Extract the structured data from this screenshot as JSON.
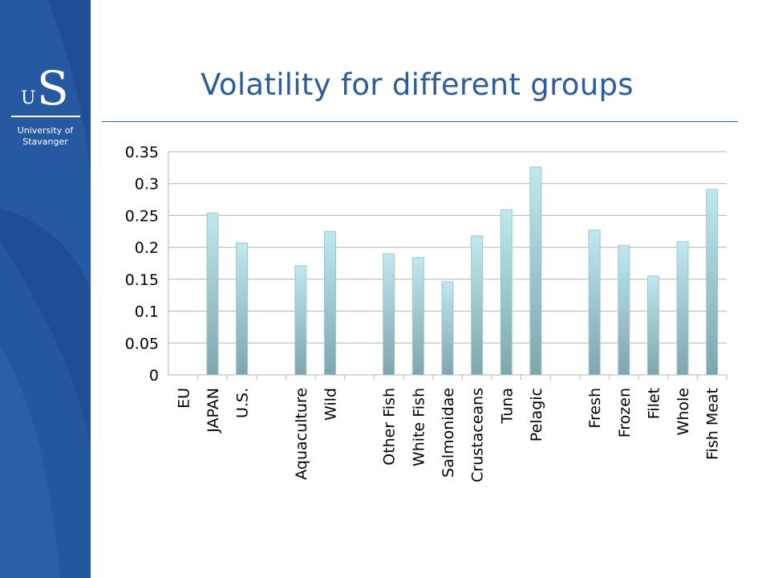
{
  "slide": {
    "title": "Volatility for different groups",
    "logo": {
      "mark_u": "U",
      "mark_s": "S",
      "line1": "University of",
      "line2": "Stavanger"
    }
  },
  "colors": {
    "sidebar": "#1f4e96",
    "title": "#2a5d99",
    "bar_top": "#bfe8ef",
    "bar_bottom": "#7fa5ad"
  },
  "chart_data": {
    "type": "bar",
    "title": "",
    "xlabel": "",
    "ylabel": "",
    "ylim": [
      0,
      0.35
    ],
    "yticks": [
      "0",
      "0.05",
      "0.1",
      "0.15",
      "0.2",
      "0.25",
      "0.3",
      "0.35"
    ],
    "grid": true,
    "categories": [
      "EU",
      "JAPAN",
      "U.S.",
      "",
      "Aquaculture",
      "Wild",
      "",
      "Other Fish",
      "White Fish",
      "Salmonidae",
      "Crustaceans",
      "Tuna",
      "Pelagic",
      "",
      "Fresh",
      "Frozen",
      "Filet",
      "Whole",
      "Fish Meat"
    ],
    "values": [
      0,
      0.254,
      0.207,
      null,
      0.171,
      0.225,
      null,
      0.19,
      0.184,
      0.146,
      0.218,
      0.259,
      0.326,
      null,
      0.227,
      0.203,
      0.155,
      0.209,
      0.291
    ]
  }
}
